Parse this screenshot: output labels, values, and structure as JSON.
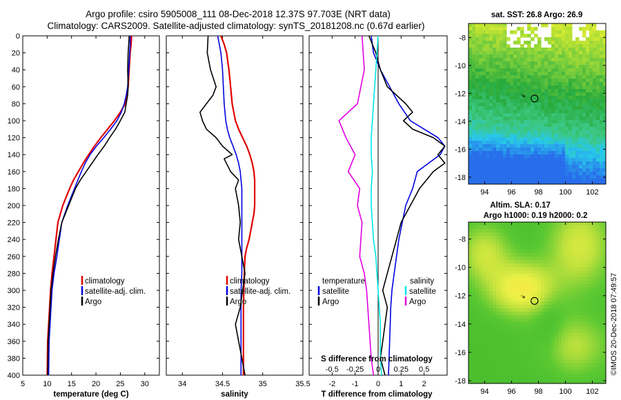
{
  "figure": {
    "title_line1": "Argo profile: csiro 5905008_111 08-Dec-2018 12.37S 97.703E (NRT data)",
    "title_line2": "Climatology: CARS2009. Satellite-adjusted climatology: synTS_20181208.nc (0.67d earlier)",
    "credit": "©IMOS 20-Dec-2018 07:49:57"
  },
  "colors": {
    "climatology": "#e00000",
    "satellite": "#0000e0",
    "argo": "#000000",
    "sat_salinity": "#00e5e5",
    "clim_salinity": "#e000e0"
  },
  "chart_data": [
    {
      "type": "line",
      "id": "temperature",
      "xlabel": "temperature (deg C)",
      "ylabel": "",
      "xlim": [
        5,
        33
      ],
      "ylim": [
        400,
        0
      ],
      "xticks": [
        "5",
        "10",
        "15",
        "20",
        "25",
        "30"
      ],
      "xtick_values": [
        5,
        10,
        15,
        20,
        25,
        30
      ],
      "yticks": [
        "0",
        "20",
        "40",
        "60",
        "80",
        "100",
        "120",
        "140",
        "160",
        "180",
        "200",
        "220",
        "240",
        "260",
        "280",
        "300",
        "320",
        "340",
        "360",
        "380",
        "400"
      ],
      "ytick_values": [
        0,
        20,
        40,
        60,
        80,
        100,
        120,
        140,
        160,
        180,
        200,
        220,
        240,
        260,
        280,
        300,
        320,
        340,
        360,
        380,
        400
      ],
      "legend": [
        "climatology",
        "satellite-adj. clim.",
        "Argo"
      ],
      "series": [
        {
          "name": "climatology",
          "color": "#e00000",
          "x": [
            27.3,
            27.2,
            27.0,
            26.8,
            26.6,
            26.4,
            26.0,
            25.0,
            23.8,
            22.4,
            21.0,
            19.7,
            18.5,
            17.4,
            16.4,
            15.4,
            14.6,
            13.9,
            13.2,
            12.7,
            12.2,
            11.8,
            11.4,
            11.0,
            10.7,
            10.4,
            10.1,
            10.0
          ],
          "y": [
            0,
            10,
            20,
            40,
            60,
            70,
            80,
            90,
            100,
            110,
            120,
            130,
            140,
            150,
            160,
            170,
            180,
            190,
            200,
            210,
            220,
            240,
            260,
            280,
            300,
            330,
            360,
            400
          ]
        },
        {
          "name": "satellite-adj. clim.",
          "color": "#0000e0",
          "x": [
            27.0,
            27.0,
            26.9,
            26.7,
            26.5,
            26.2,
            25.8,
            25.2,
            24.3,
            23.0,
            21.6,
            20.1,
            18.8,
            17.8,
            17.0,
            16.3,
            15.6,
            14.9,
            14.2,
            13.6,
            13.0,
            12.5,
            12.0,
            11.4,
            11.0,
            10.7,
            10.4,
            10.3
          ],
          "y": [
            0,
            10,
            20,
            40,
            60,
            70,
            80,
            90,
            100,
            110,
            120,
            130,
            140,
            150,
            160,
            170,
            180,
            190,
            200,
            210,
            220,
            240,
            260,
            280,
            300,
            330,
            360,
            400
          ]
        },
        {
          "name": "Argo",
          "color": "#000000",
          "x": [
            26.8,
            26.7,
            26.6,
            26.5,
            26.6,
            26.5,
            26.2,
            25.9,
            25.0,
            24.0,
            22.8,
            21.7,
            20.4,
            19.2,
            18.0,
            16.8,
            15.8,
            15.1,
            14.4,
            13.7,
            13.0,
            12.3,
            11.7,
            11.2,
            10.8,
            10.5,
            10.2,
            10.1
          ],
          "y": [
            0,
            10,
            20,
            40,
            60,
            70,
            80,
            90,
            100,
            110,
            120,
            130,
            140,
            150,
            160,
            170,
            180,
            190,
            200,
            210,
            220,
            240,
            260,
            280,
            300,
            330,
            360,
            400
          ]
        }
      ]
    },
    {
      "type": "line",
      "id": "salinity",
      "xlabel": "salinity",
      "xlim": [
        33.8,
        35.5
      ],
      "ylim": [
        400,
        0
      ],
      "xticks": [
        "34",
        "34.5",
        "35",
        "35.5"
      ],
      "xtick_values": [
        34,
        34.5,
        35,
        35.5
      ],
      "legend": [
        "climatology",
        "satellite-adj. clim.",
        "Argo"
      ],
      "series": [
        {
          "name": "climatology",
          "color": "#e00000",
          "x": [
            34.48,
            34.52,
            34.55,
            34.58,
            34.6,
            34.62,
            34.64,
            34.66,
            34.7,
            34.75,
            34.8,
            34.84,
            34.87,
            34.89,
            34.9,
            34.9,
            34.9,
            34.9,
            34.89,
            34.87,
            34.85,
            34.83,
            34.8,
            34.78,
            34.77,
            34.76,
            34.76,
            34.76
          ],
          "y": [
            0,
            10,
            20,
            40,
            60,
            80,
            90,
            100,
            110,
            120,
            130,
            140,
            150,
            160,
            170,
            180,
            190,
            200,
            210,
            220,
            230,
            240,
            250,
            260,
            280,
            320,
            360,
            400
          ]
        },
        {
          "name": "satellite-adj. clim.",
          "color": "#0000e0",
          "x": [
            34.44,
            34.48,
            34.5,
            34.51,
            34.52,
            34.54,
            34.56,
            34.59,
            34.63,
            34.67,
            34.7,
            34.72,
            34.73,
            34.74,
            34.74,
            34.74,
            34.74,
            34.74,
            34.74,
            34.74,
            34.73,
            34.73,
            34.73,
            34.73
          ],
          "y": [
            0,
            20,
            40,
            60,
            80,
            100,
            110,
            120,
            130,
            140,
            150,
            160,
            170,
            180,
            190,
            200,
            220,
            240,
            260,
            280,
            300,
            320,
            360,
            400
          ]
        },
        {
          "name": "Argo",
          "color": "#000000",
          "x": [
            34.32,
            34.31,
            34.35,
            34.42,
            34.38,
            34.3,
            34.22,
            34.25,
            34.3,
            34.42,
            34.5,
            34.62,
            34.52,
            34.6,
            34.7,
            34.66,
            34.7,
            34.72,
            34.7,
            34.74,
            34.78,
            34.75,
            34.72,
            34.66,
            34.7,
            34.74,
            34.78
          ],
          "y": [
            0,
            20,
            40,
            60,
            70,
            80,
            90,
            100,
            110,
            120,
            130,
            140,
            145,
            160,
            170,
            180,
            200,
            220,
            240,
            260,
            280,
            300,
            320,
            340,
            360,
            380,
            400
          ]
        }
      ]
    },
    {
      "type": "line",
      "id": "difference",
      "xlabel": "T difference from climatology",
      "xlabel_top": "S difference from climatology",
      "xlim": [
        -3,
        3
      ],
      "ylim": [
        400,
        0
      ],
      "xticks": [
        "-2",
        "-1",
        "0",
        "1",
        "2"
      ],
      "xtick_values": [
        -2,
        -1,
        0,
        1,
        2
      ],
      "top_xticks": [
        "-0.5",
        "-0.25",
        "0",
        "0.25",
        "0.5"
      ],
      "top_xtick_values": [
        -2,
        -1,
        0,
        1,
        2
      ],
      "legend_temperature_header": "temperature",
      "legend_salinity_header": "salinity",
      "legend_temperature": [
        "satellite",
        "Argo"
      ],
      "legend_salinity": [
        "satellite",
        "Argo"
      ],
      "series": [
        {
          "name": "T satellite",
          "color": "#0000e0",
          "x": [
            -0.3,
            -0.2,
            0.1,
            0.5,
            0.9,
            1.4,
            2.0,
            2.6,
            2.9,
            2.7,
            2.2,
            1.7,
            1.5,
            1.2,
            0.9,
            0.7,
            0.6,
            0.55,
            0.5,
            0.45
          ],
          "y": [
            0,
            20,
            40,
            60,
            80,
            100,
            110,
            120,
            130,
            140,
            150,
            160,
            180,
            200,
            240,
            280,
            300,
            320,
            360,
            400
          ]
        },
        {
          "name": "T Argo",
          "color": "#000000",
          "x": [
            -0.4,
            -0.1,
            0.1,
            0.4,
            1.2,
            1.5,
            1.1,
            1.5,
            2.4,
            2.9,
            2.6,
            2.9,
            2.4,
            1.8,
            1.4,
            1.0,
            0.8,
            0.6,
            0.4,
            0.2,
            0.4,
            0.3,
            0.2,
            0.1,
            0.3
          ],
          "y": [
            0,
            20,
            40,
            60,
            80,
            90,
            100,
            110,
            120,
            130,
            140,
            150,
            160,
            180,
            200,
            220,
            240,
            260,
            280,
            300,
            320,
            340,
            360,
            380,
            400
          ]
        },
        {
          "name": "S satellite",
          "color": "#00e5e5",
          "x": [
            0.0,
            -0.1,
            -0.2,
            -0.25,
            -0.3,
            -0.3,
            -0.25,
            -0.3,
            -0.3,
            -0.2,
            -0.1,
            -0.05,
            0.0,
            0.1,
            0.1,
            0.15
          ],
          "y": [
            0,
            40,
            80,
            100,
            120,
            140,
            160,
            180,
            200,
            240,
            260,
            280,
            300,
            340,
            380,
            400
          ]
        },
        {
          "name": "S Argo",
          "color": "#e000e0",
          "x": [
            -0.7,
            -0.6,
            -0.9,
            -1.7,
            -1.4,
            -1.0,
            -1.3,
            -0.8,
            -0.9,
            -0.7,
            -0.8,
            -0.6,
            -0.5,
            -0.4,
            -0.3,
            -0.2
          ],
          "y": [
            0,
            40,
            80,
            100,
            120,
            140,
            160,
            180,
            200,
            220,
            260,
            280,
            300,
            340,
            380,
            400
          ]
        }
      ]
    },
    {
      "type": "heatmap",
      "id": "sst_map",
      "title": "sat. SST: 26.8 Argo: 26.9",
      "xlim": [
        92.8,
        103.0
      ],
      "ylim": [
        -18.5,
        -7.0
      ],
      "xticks": [
        "94",
        "96",
        "98",
        "100",
        "102"
      ],
      "xtick_values": [
        94,
        96,
        98,
        100,
        102
      ],
      "yticks": [
        "-8",
        "-10",
        "-12",
        "-14",
        "-16",
        "-18"
      ],
      "ytick_values": [
        -8,
        -10,
        -12,
        -14,
        -16,
        -18
      ],
      "argo_position": [
        97.703,
        -12.37
      ],
      "track_marker": [
        96.9,
        -12.2
      ]
    },
    {
      "type": "heatmap",
      "id": "sla_map",
      "title": "Altim. SLA: 0.17",
      "subtitle": "Argo h1000: 0.19 h2000: 0.2",
      "xlim": [
        92.8,
        103.0
      ],
      "ylim": [
        -18.2,
        -6.8
      ],
      "xticks": [
        "94",
        "96",
        "98",
        "100",
        "102"
      ],
      "xtick_values": [
        94,
        96,
        98,
        100,
        102
      ],
      "yticks": [
        "-8",
        "-10",
        "-12",
        "-14",
        "-16",
        "-18"
      ],
      "ytick_values": [
        -8,
        -10,
        -12,
        -14,
        -16,
        -18
      ],
      "argo_position": [
        97.703,
        -12.37
      ],
      "track_marker": [
        96.9,
        -12.1
      ]
    }
  ]
}
